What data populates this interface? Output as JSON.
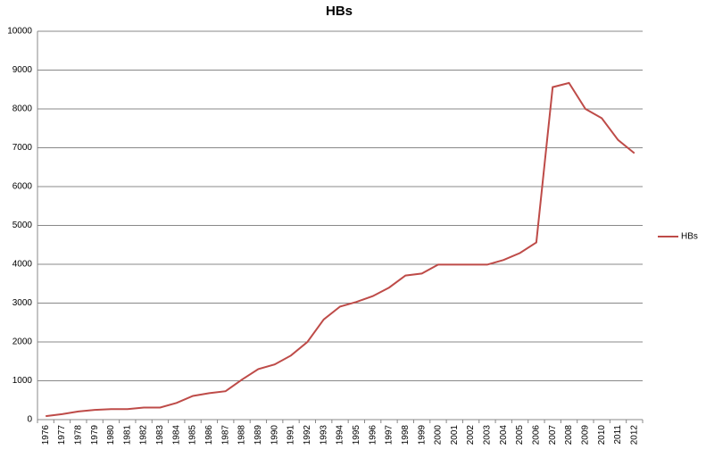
{
  "chart_data": {
    "type": "line",
    "title": "HBs",
    "categories": [
      "1976",
      "1977",
      "1978",
      "1979",
      "1980",
      "1981",
      "1982",
      "1983",
      "1984",
      "1985",
      "1986",
      "1987",
      "1988",
      "1989",
      "1990",
      "1991",
      "1992",
      "1993",
      "1994",
      "1995",
      "1996",
      "1997",
      "1998",
      "1999",
      "2000",
      "2001",
      "2002",
      "2003",
      "2004",
      "2005",
      "2006",
      "2007",
      "2008",
      "2009",
      "2010",
      "2011",
      "2012"
    ],
    "series": [
      {
        "name": "HBs",
        "color": "#be4b48",
        "values": [
          90,
          140,
          210,
          250,
          270,
          270,
          310,
          310,
          430,
          610,
          680,
          730,
          1030,
          1300,
          1420,
          1650,
          2000,
          2580,
          2910,
          3030,
          3180,
          3400,
          3710,
          3760,
          3990,
          3990,
          3990,
          3990,
          4110,
          4290,
          4560,
          8560,
          8670,
          8000,
          7760,
          7200,
          6860
        ]
      }
    ],
    "ylim": [
      0,
      10000
    ],
    "yticks": [
      0,
      1000,
      2000,
      3000,
      4000,
      5000,
      6000,
      7000,
      8000,
      9000,
      10000
    ],
    "grid": true,
    "legend": "right"
  }
}
